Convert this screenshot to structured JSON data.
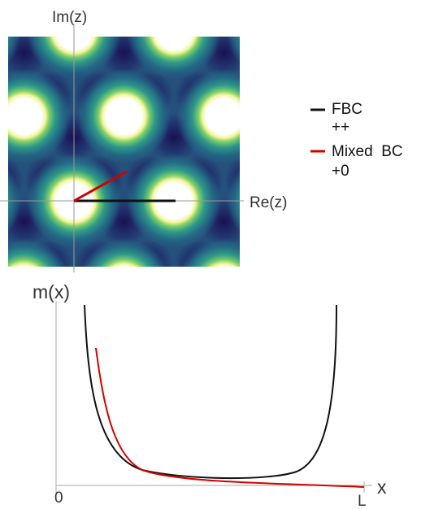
{
  "complex_plane": {
    "x_axis_label": "Re(z)",
    "y_axis_label": "Im(z)"
  },
  "legend": {
    "items": [
      {
        "line1": "FBC",
        "line2": "++",
        "color": "#111111"
      },
      {
        "line1": "Mixed  BC",
        "line2": "+0",
        "color": "#d40000"
      }
    ]
  },
  "profile_plot": {
    "y_axis_label": "m(x)",
    "x_axis_label": "x",
    "x_start_label": "0",
    "x_end_label": "L"
  },
  "colors": {
    "background_dark": "#1b1655",
    "mid_teal": "#2f8a86",
    "highlight": "#ffffff",
    "fbc_curve": "#111111",
    "mixed_curve": "#d40000",
    "axis": "#9a9a9a"
  }
}
